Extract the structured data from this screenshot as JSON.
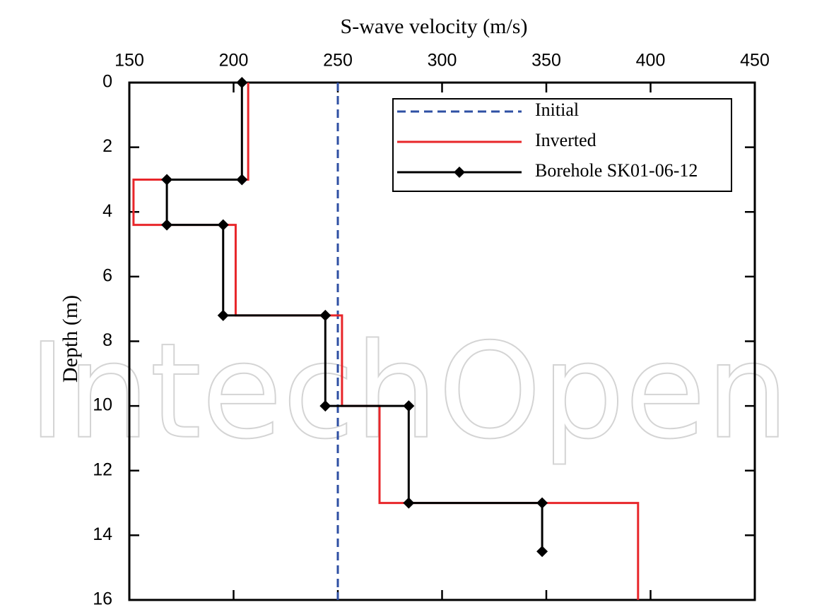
{
  "chart_data": {
    "type": "line",
    "x_label": "S-wave velocity (m/s)",
    "y_label": "Depth (m)",
    "watermark": "IntechOpen",
    "xlim": [
      150,
      450
    ],
    "xticks": [
      150,
      200,
      250,
      300,
      350,
      400,
      450
    ],
    "ylim": [
      0,
      16
    ],
    "yticks": [
      0,
      2,
      4,
      6,
      8,
      10,
      12,
      14,
      16
    ],
    "y_inverted": true,
    "x_axis_position": "top",
    "legend": "upper right",
    "series": [
      {
        "name": "Initial",
        "color": "#2e4fa3",
        "dash": true,
        "marker": null,
        "x": [
          250,
          250
        ],
        "values": [
          0,
          16
        ]
      },
      {
        "name": "Inverted",
        "color": "#e8262a",
        "dash": false,
        "marker": null,
        "x": [
          207,
          207,
          152,
          152,
          201,
          201,
          252,
          252,
          270,
          270,
          394,
          394
        ],
        "values": [
          0,
          3,
          3,
          4.4,
          4.4,
          7.2,
          7.2,
          10,
          10,
          13,
          13,
          16
        ]
      },
      {
        "name": "Borehole SK01-06-12",
        "color": "#000000",
        "dash": false,
        "marker": "diamond",
        "x": [
          204,
          204,
          168,
          168,
          195,
          195,
          244,
          244,
          284,
          284,
          348,
          348
        ],
        "values": [
          0,
          3,
          3,
          4.4,
          4.4,
          7.2,
          7.2,
          10,
          10,
          13,
          13,
          14.5
        ]
      }
    ]
  }
}
